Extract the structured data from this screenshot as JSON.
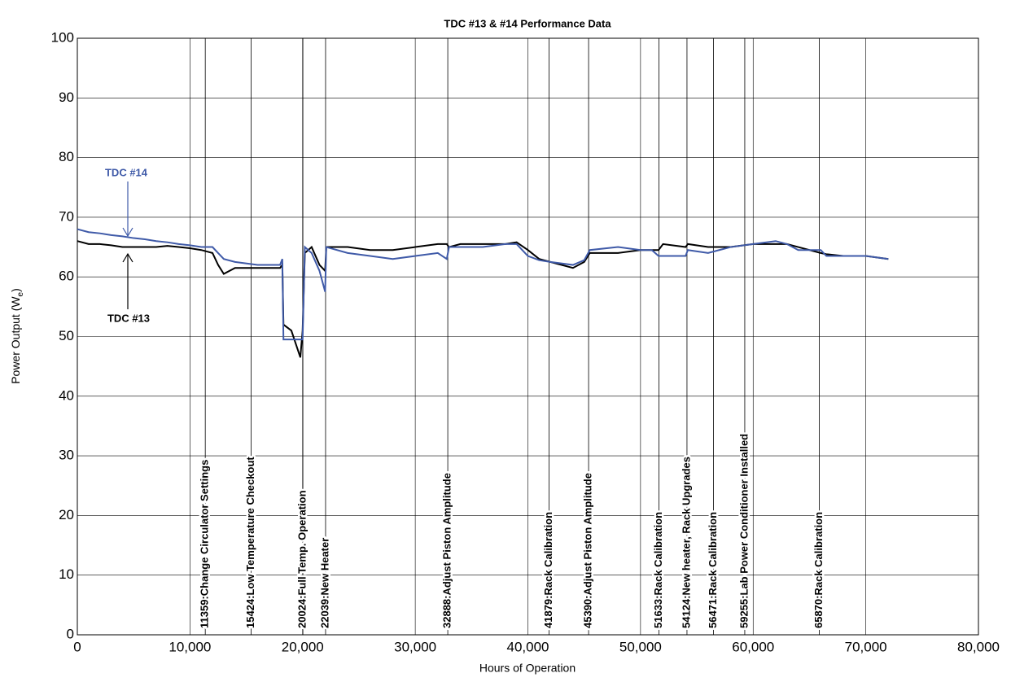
{
  "chart_data": {
    "type": "line",
    "title": "TDC #13 & #14 Performance Data",
    "x_label": "Hours of Operation",
    "y_label": {
      "text": "Power Output (W",
      "subscript": "e",
      "suffix": ")"
    },
    "x": [
      0,
      1000,
      2000,
      3000,
      4000,
      5000,
      6000,
      7000,
      8000,
      9000,
      10000,
      11000,
      12000,
      12500,
      13000,
      14000,
      16000,
      18000,
      18200,
      18300,
      19000,
      19800,
      20000,
      20200,
      20800,
      21500,
      22000,
      22100,
      24000,
      26000,
      28000,
      30000,
      32000,
      32800,
      33000,
      34000,
      36000,
      38000,
      39000,
      40000,
      41000,
      42000,
      44000,
      45000,
      45500,
      48000,
      50000,
      51000,
      51600,
      52000,
      54000,
      54200,
      56000,
      58000,
      60000,
      62000,
      63000,
      64000,
      66000,
      66500,
      68000,
      70000,
      72000
    ],
    "series": [
      {
        "name": "TDC #13",
        "color": "#000000",
        "values": [
          66,
          65.5,
          65.5,
          65.3,
          65,
          65,
          65,
          65,
          65.2,
          65,
          64.8,
          64.5,
          64,
          62,
          60.5,
          61.5,
          61.5,
          61.5,
          62,
          52,
          51,
          46.5,
          51,
          64,
          65,
          62,
          61,
          65,
          65,
          64.5,
          64.5,
          65,
          65.5,
          65.5,
          65,
          65.5,
          65.5,
          65.5,
          65.8,
          64.5,
          63,
          62.5,
          61.5,
          62.5,
          64,
          64,
          64.5,
          64.5,
          64.5,
          65.5,
          65,
          65.5,
          65,
          65,
          65.5,
          65.5,
          65.5,
          65,
          64,
          63.8,
          63.5,
          63.5,
          63
        ]
      },
      {
        "name": "TDC #14",
        "color": "#3f5aa8",
        "values": [
          68,
          67.5,
          67.3,
          67,
          66.8,
          66.5,
          66.3,
          66,
          65.8,
          65.5,
          65.3,
          65,
          65,
          64,
          63,
          62.5,
          62,
          62,
          63,
          49.5,
          49.5,
          49.5,
          49.5,
          65,
          64,
          61,
          57.5,
          65,
          64,
          63.5,
          63,
          63.5,
          64,
          63,
          65,
          65,
          65,
          65.5,
          65.5,
          63.5,
          62.8,
          62.5,
          62,
          62.8,
          64.5,
          65,
          64.5,
          64.5,
          63.5,
          63.5,
          63.5,
          64.5,
          64,
          65,
          65.5,
          66,
          65.5,
          64.5,
          64.5,
          63.5,
          63.5,
          63.5,
          63
        ]
      }
    ],
    "events": [
      {
        "x": 11359,
        "label": "11359:Change Circulator Settings"
      },
      {
        "x": 15424,
        "label": "15424:Low Temperature Checkout"
      },
      {
        "x": 20024,
        "label": "20024:Full Temp. Operation"
      },
      {
        "x": 22039,
        "label": "22039:New Heater"
      },
      {
        "x": 32888,
        "label": "32888:Adjust Piston Amplitude"
      },
      {
        "x": 41879,
        "label": "41879:Rack Calibration"
      },
      {
        "x": 45390,
        "label": "45390:Adjust Piston Amplitude"
      },
      {
        "x": 51633,
        "label": "51633:Rack Calibration"
      },
      {
        "x": 54124,
        "label": "54124:New heater, Rack Upgrades"
      },
      {
        "x": 56471,
        "label": "56471:Rack Calibration"
      },
      {
        "x": 59255,
        "label": "59255:Lab Power Conditioner Installed"
      },
      {
        "x": 65870,
        "label": "65870:Rack Calibration"
      }
    ],
    "xlim": [
      0,
      80000
    ],
    "xticks": [
      0,
      {
        "value": 10000,
        "label": "10,000"
      },
      {
        "value": 20000,
        "label": "20,000"
      },
      {
        "value": 30000,
        "label": "30,000"
      },
      {
        "value": 40000,
        "label": "40,000"
      },
      {
        "value": 50000,
        "label": "50,000"
      },
      {
        "value": 60000,
        "label": "60,000"
      },
      {
        "value": 70000,
        "label": "70,000"
      },
      {
        "value": 80000,
        "label": "80,000"
      }
    ],
    "ylim": [
      0,
      100
    ],
    "yticks": [
      0,
      10,
      20,
      30,
      40,
      50,
      60,
      70,
      80,
      90,
      100
    ],
    "grid": true
  }
}
